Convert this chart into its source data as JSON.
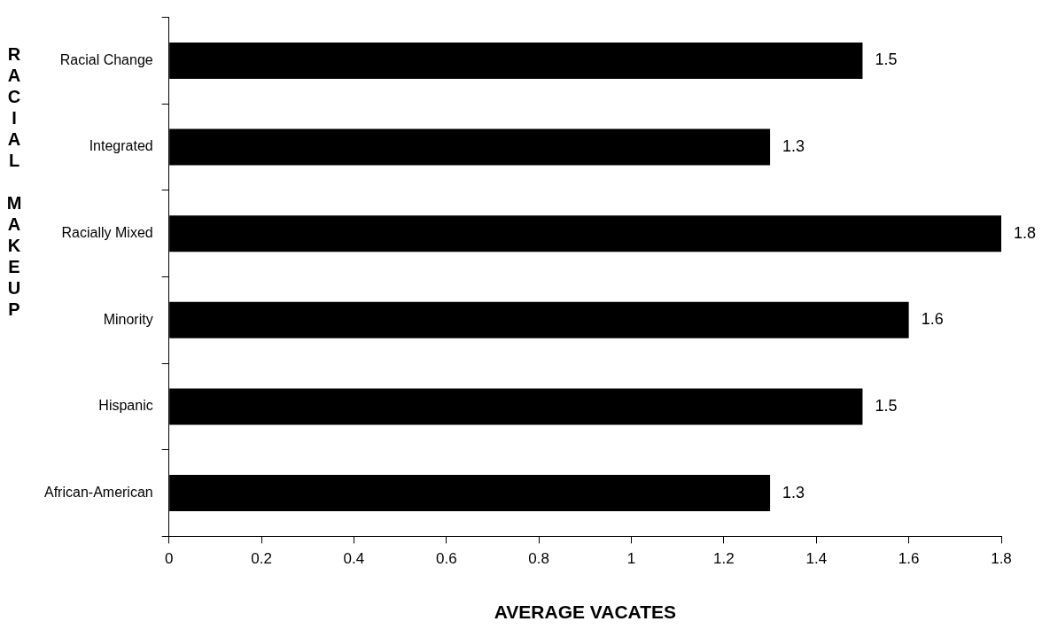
{
  "chart_data": {
    "type": "bar",
    "orientation": "horizontal",
    "xlabel": "AVERAGE VACATES",
    "ylabel": "RACIAL MAKEUP",
    "categories": [
      "Racial Change",
      "Integrated",
      "Racially Mixed",
      "Minority",
      "Hispanic",
      "African-American"
    ],
    "values": [
      1.5,
      1.3,
      1.8,
      1.6,
      1.5,
      1.3
    ],
    "color": "#000000",
    "data_labels": true,
    "xlim": [
      0,
      1.8
    ],
    "xticks": [
      0,
      0.2,
      0.4,
      0.6,
      0.8,
      1,
      1.2,
      1.4,
      1.6,
      1.8
    ]
  }
}
